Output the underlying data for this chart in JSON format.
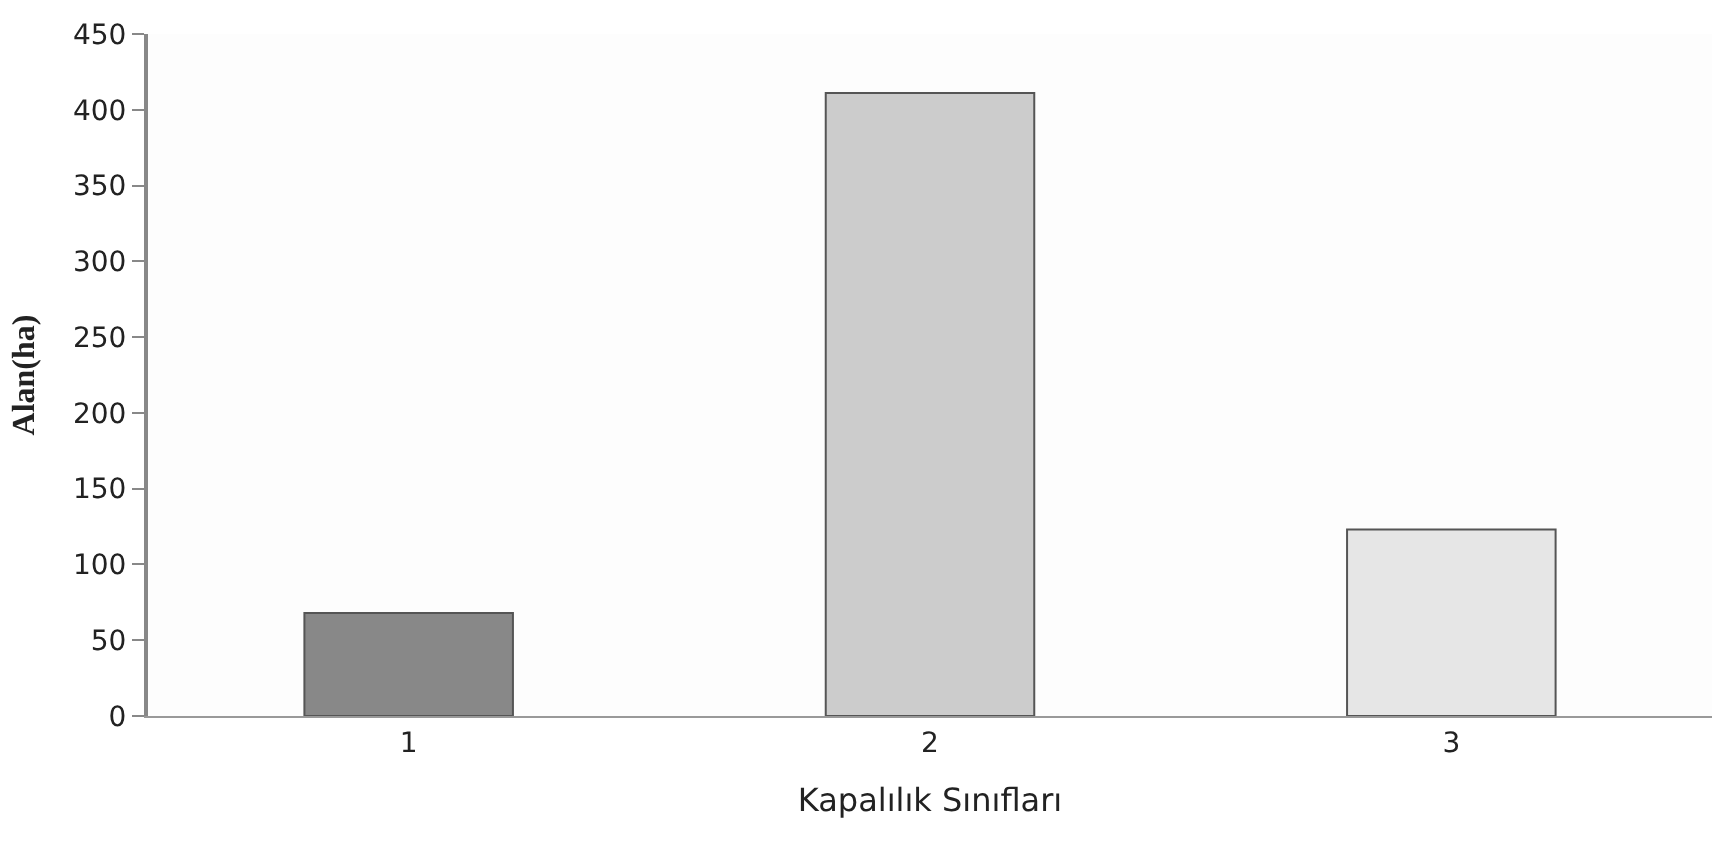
{
  "chart_data": {
    "type": "bar",
    "xlabel": "Kapalılık Sınıfları",
    "ylabel": "Alan(ha)",
    "categories": [
      "1",
      "2",
      "3"
    ],
    "values": [
      68,
      411,
      123
    ],
    "colors": [
      "#888888",
      "#cccccc",
      "#e6e6e6"
    ],
    "ylim": [
      0,
      450
    ],
    "yticks": [
      0,
      50,
      100,
      150,
      200,
      250,
      300,
      350,
      400,
      450
    ]
  }
}
